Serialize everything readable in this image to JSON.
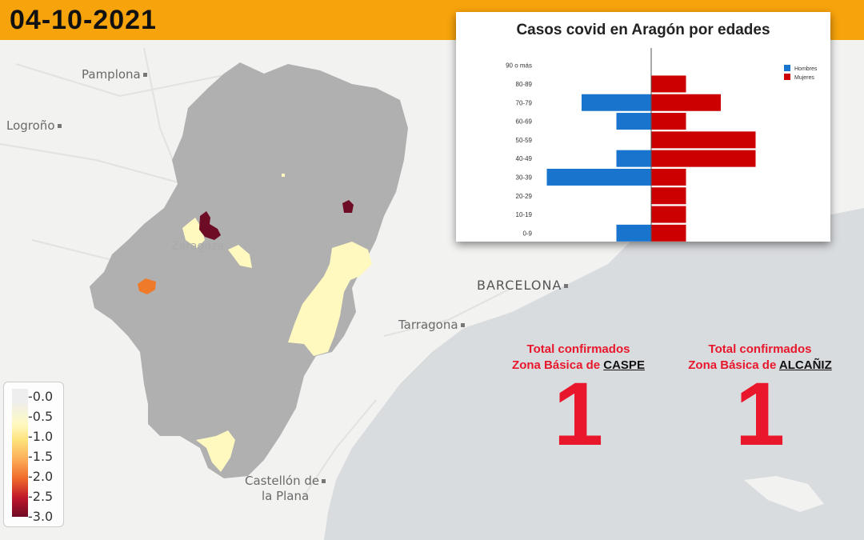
{
  "date": "04-10-2021",
  "cities": {
    "pamplona": "Pamplona",
    "logrono": "Logroño",
    "zaragoza": "Zaragoza",
    "barcelona": "BARCELONA",
    "tarragona": "Tarragona",
    "castellon_line1": "Castellón de",
    "castellon_line2": "la Plana"
  },
  "legend": {
    "ticks": [
      "-0.0",
      "-0.5",
      "-1.0",
      "-1.5",
      "-2.0",
      "-2.5",
      "-3.0"
    ]
  },
  "colors": {
    "header": "#f7a30b",
    "men": "#1874cd",
    "women": "#cc0000",
    "region": "#b0b0b0",
    "sea": "#d9dcdf",
    "accent_red": "#e8172b"
  },
  "chart_data": {
    "type": "bar",
    "orientation": "horizontal-population-pyramid",
    "title": "Casos covid en Aragón por edades",
    "categories": [
      "90 o más",
      "80-89",
      "70-79",
      "60-69",
      "50-59",
      "40-49",
      "30-39",
      "20-29",
      "10-19",
      "0-9"
    ],
    "series": [
      {
        "name": "Hombres",
        "values": [
          0,
          0,
          2,
          1,
          0,
          1,
          3,
          0,
          0,
          1
        ],
        "color": "#1874cd"
      },
      {
        "name": "Mujeres",
        "values": [
          0,
          1,
          2,
          1,
          3,
          3,
          1,
          1,
          1,
          1
        ],
        "color": "#cc0000"
      }
    ],
    "legend_position": "top-right"
  },
  "totals": [
    {
      "line1": "Total confirmados",
      "line2_prefix": "Zona Básica de ",
      "zone": "CASPE",
      "count": "1"
    },
    {
      "line1": "Total confirmados",
      "line2_prefix": "Zona Básica de ",
      "zone": "ALCAÑIZ",
      "count": "1"
    }
  ]
}
